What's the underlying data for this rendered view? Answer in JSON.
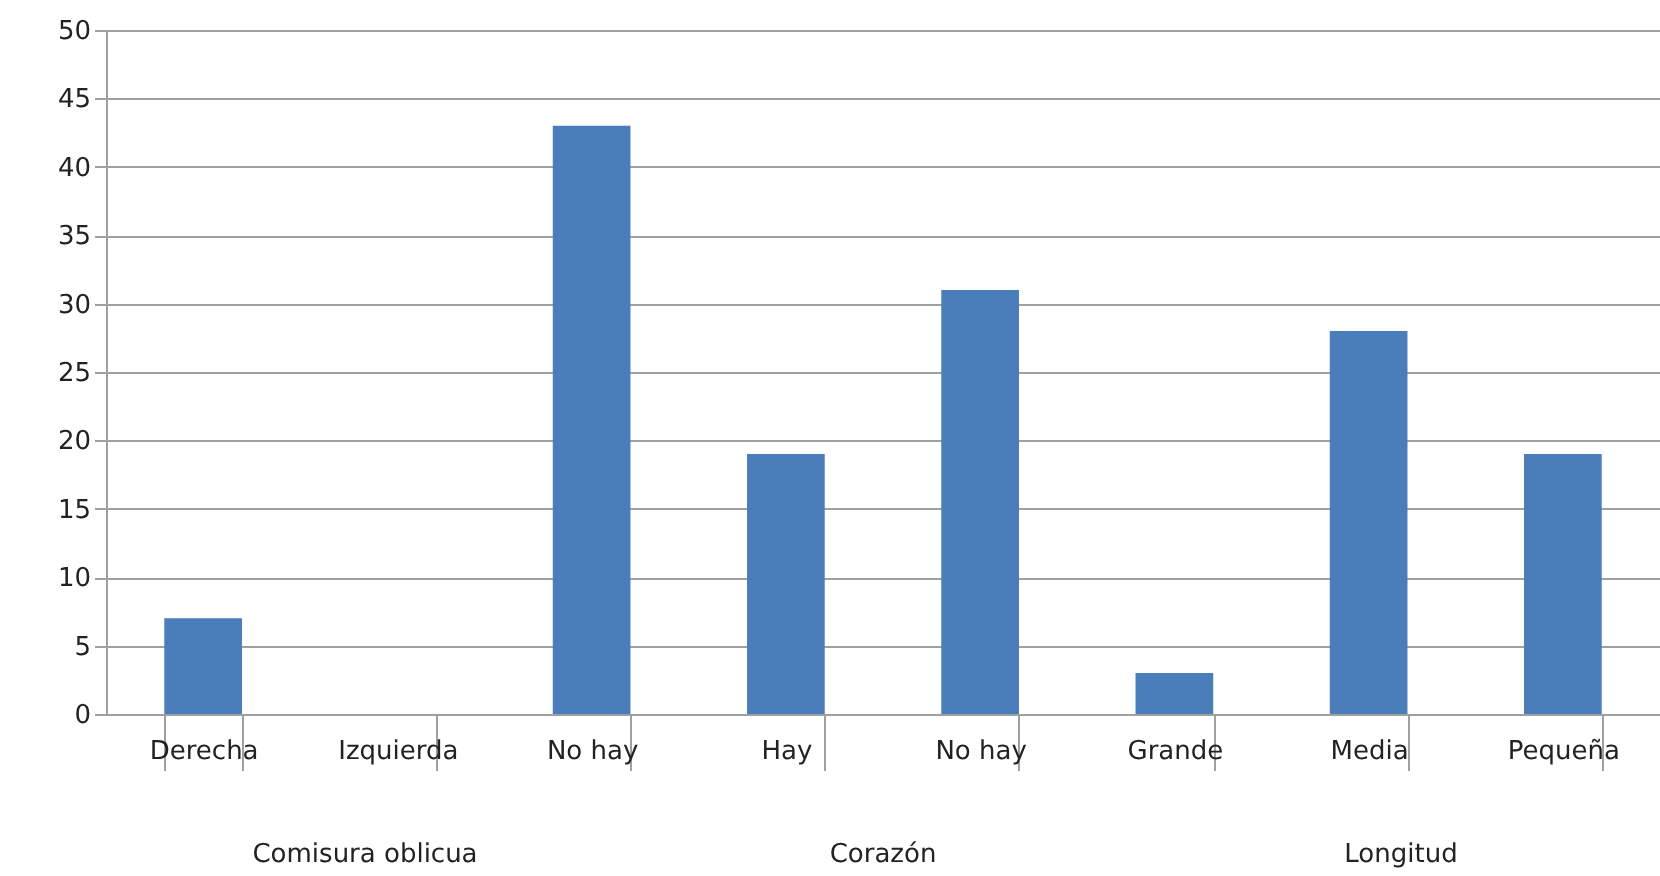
{
  "chart_data": {
    "type": "bar",
    "categories": [
      "Derecha",
      "Izquierda",
      "No hay",
      "Hay",
      "No hay",
      "Grande",
      "Media",
      "Pequeña"
    ],
    "values": [
      7,
      0,
      43,
      19,
      31,
      3,
      28,
      19
    ],
    "color": "#4a7ebb",
    "ylim": [
      0,
      50
    ],
    "yticks": [
      0,
      5,
      10,
      15,
      20,
      25,
      30,
      35,
      40,
      45,
      50
    ],
    "grid": "y",
    "annotations": [
      "Comisura oblicua",
      "Corazón",
      "Longitud"
    ]
  }
}
